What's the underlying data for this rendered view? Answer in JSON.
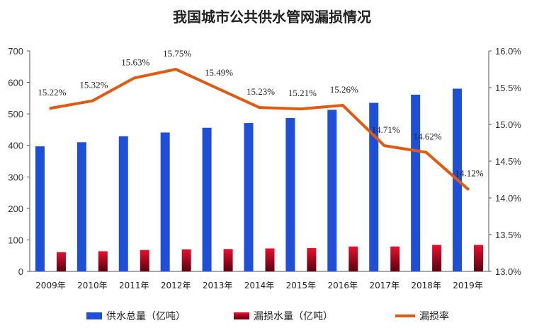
{
  "title": "我国城市公共供水管网漏损情况",
  "chart_data": {
    "type": "bar",
    "categories": [
      "2009年",
      "2010年",
      "2011年",
      "2012年",
      "2013年",
      "2014年",
      "2015年",
      "2016年",
      "2017年",
      "2018年",
      "2019年"
    ],
    "series": [
      {
        "name": "供水总量（亿吨）",
        "type": "bar",
        "axis": "left",
        "color": "#1f4fd6",
        "values": [
          397,
          410,
          429,
          441,
          456,
          471,
          487,
          513,
          535,
          561,
          580
        ]
      },
      {
        "name": "漏损水量（亿吨）",
        "type": "bar",
        "axis": "left",
        "color": "#d0102a",
        "values": [
          61,
          64,
          68,
          70,
          71,
          73,
          74,
          79,
          79,
          84,
          84
        ]
      },
      {
        "name": "漏损率",
        "type": "line",
        "axis": "right",
        "color": "#e05a12",
        "values": [
          15.22,
          15.32,
          15.63,
          15.75,
          15.49,
          15.23,
          15.21,
          15.26,
          14.71,
          14.62,
          14.12
        ],
        "labels": [
          "15.22%",
          "15.32%",
          "15.63%",
          "15.75%",
          "15.49%",
          "15.23%",
          "15.21%",
          "15.26%",
          "14.71%",
          "14.62%",
          "14.12%"
        ]
      }
    ],
    "left_axis": {
      "ylim": [
        0,
        700
      ],
      "ticks": [
        "0",
        "100",
        "200",
        "300",
        "400",
        "500",
        "600",
        "700"
      ]
    },
    "right_axis": {
      "ylim": [
        13.0,
        16.0
      ],
      "ticks": [
        "13.0%",
        "13.5%",
        "14.0%",
        "14.5%",
        "15.0%",
        "15.5%",
        "16.0%"
      ]
    },
    "grid": false,
    "legend_position": "bottom"
  }
}
